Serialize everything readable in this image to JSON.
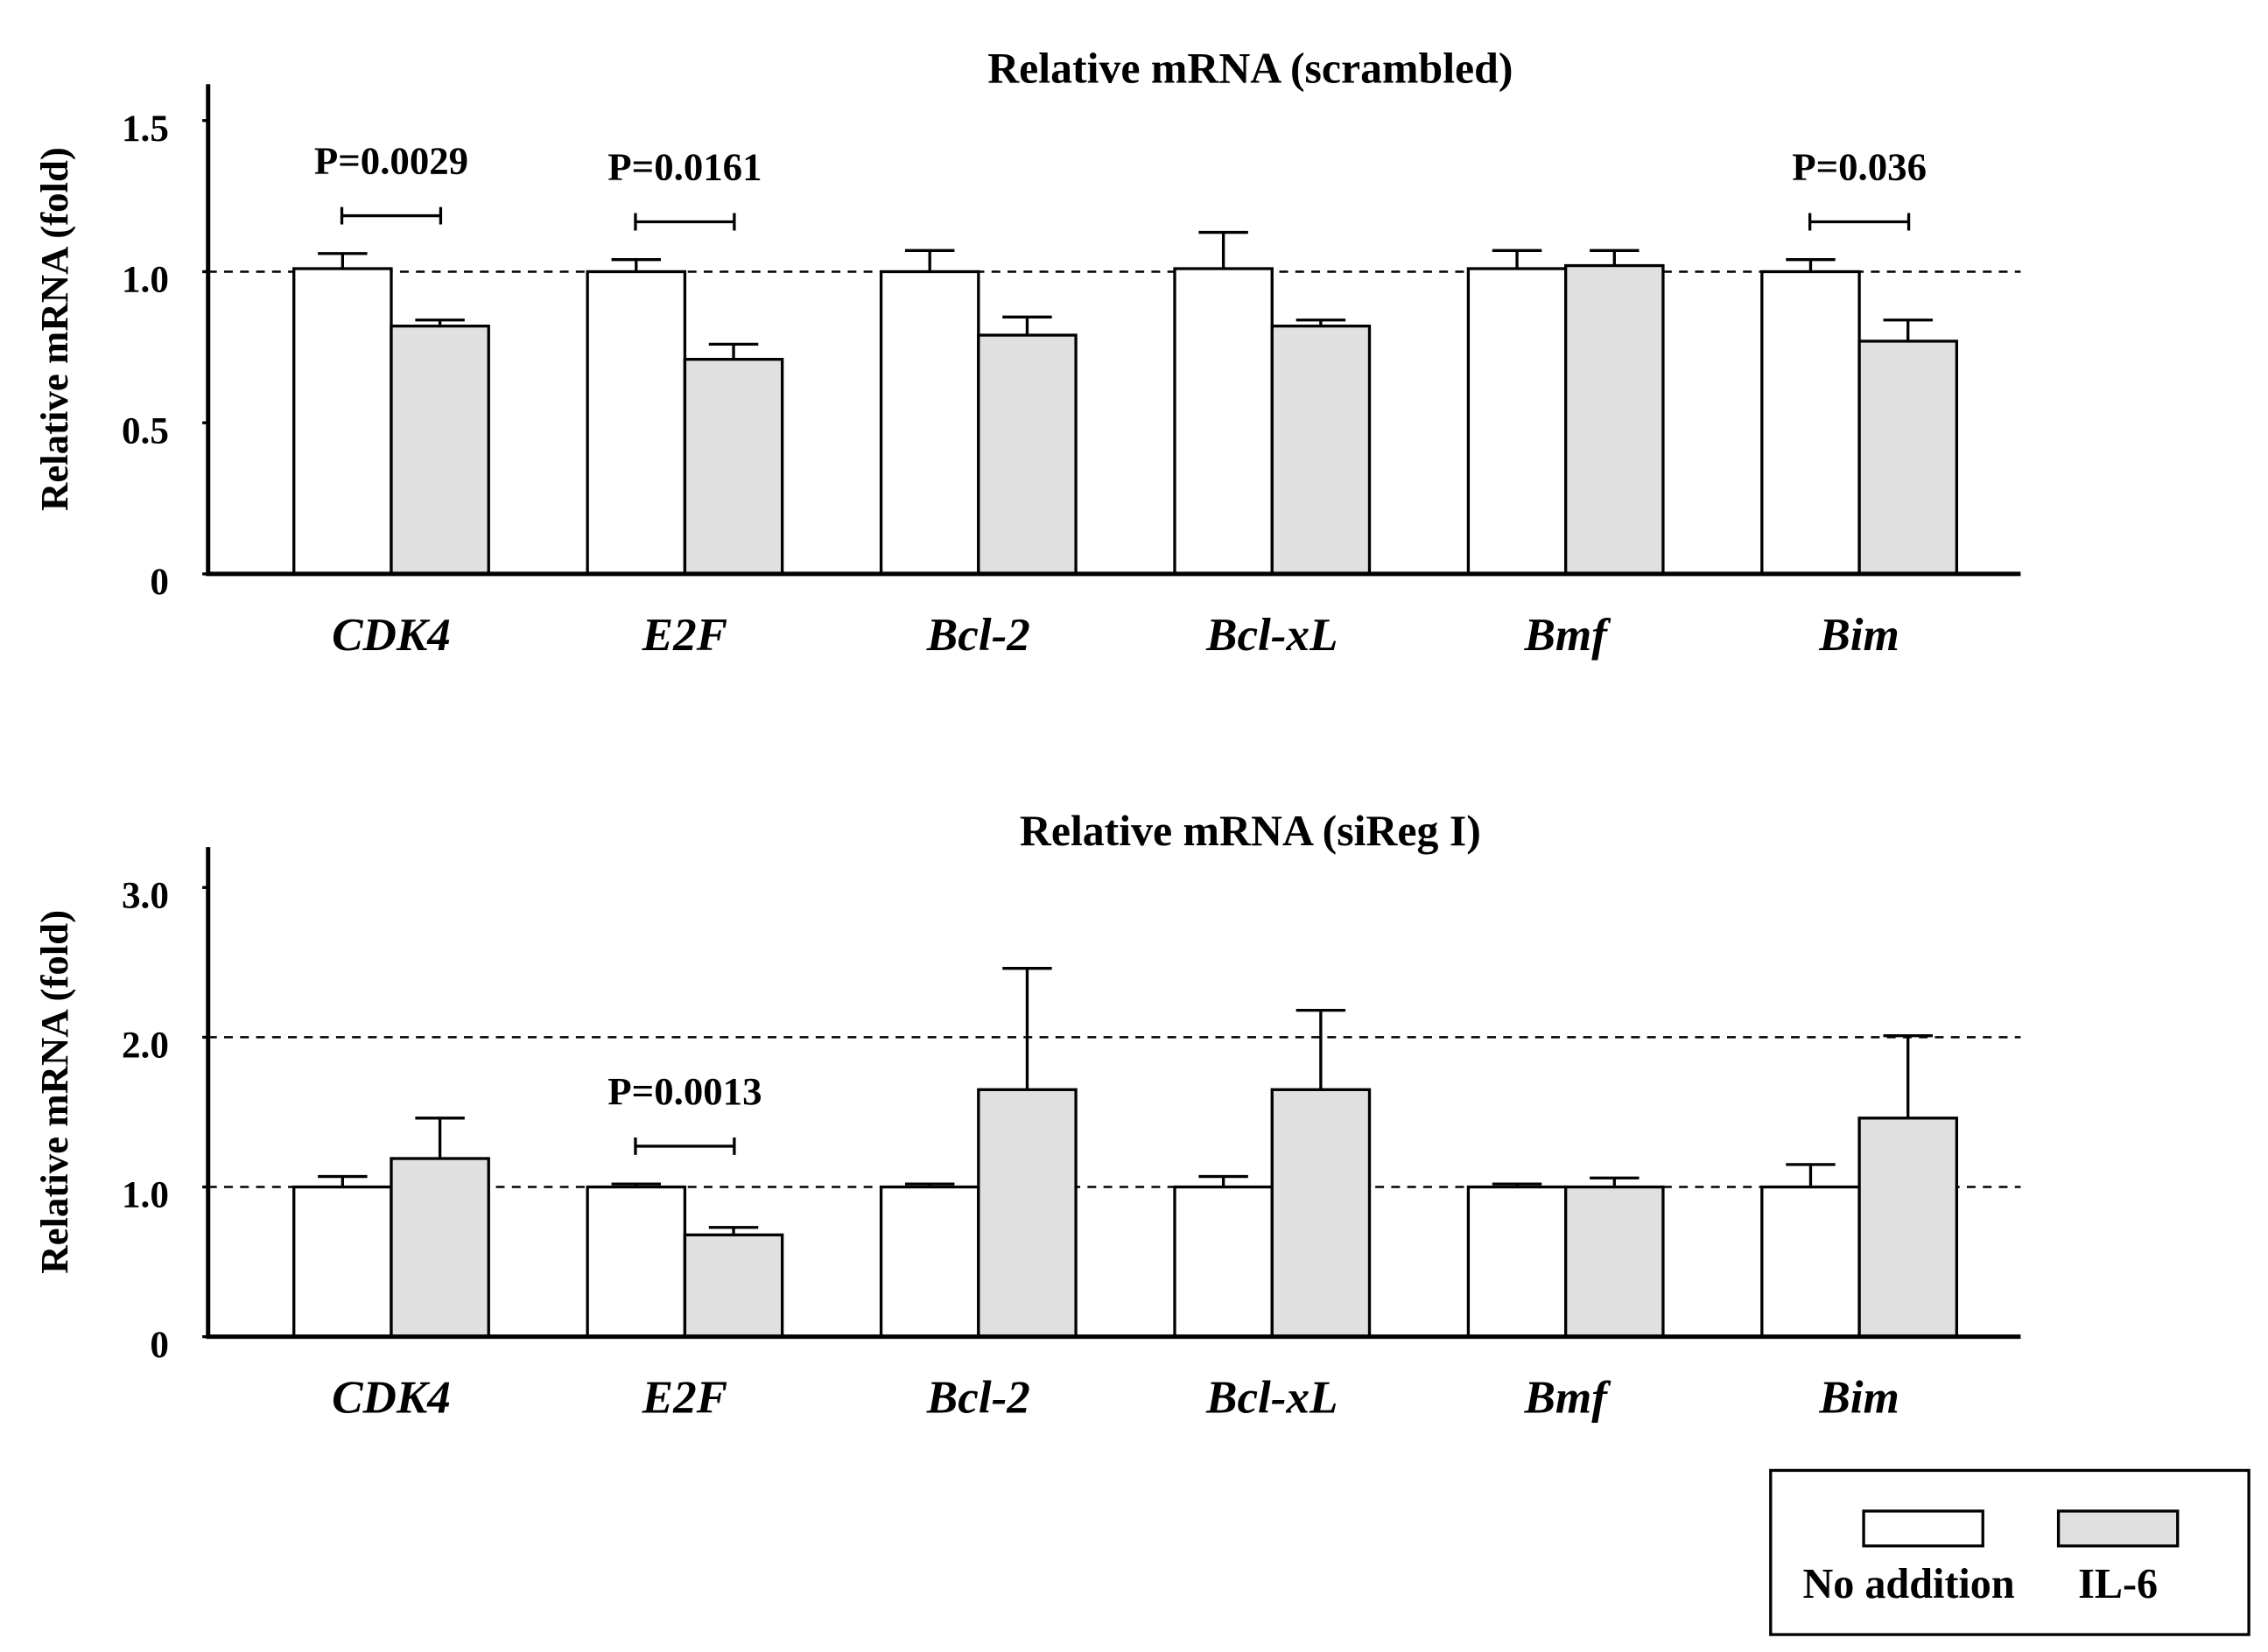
{
  "chart_data": [
    {
      "type": "bar",
      "title": "Relative mRNA (scrambled)",
      "y_label": "Relative mRNA (fold)",
      "categories": [
        "CDK4",
        "E2F",
        "Bcl-2",
        "Bcl-xL",
        "Bmf",
        "Bim"
      ],
      "series": [
        {
          "name": "No addition",
          "color": "#ffffff",
          "values": [
            1.01,
            1.0,
            1.0,
            1.01,
            1.01,
            1.0
          ],
          "errors": [
            0.05,
            0.04,
            0.07,
            0.12,
            0.06,
            0.04
          ]
        },
        {
          "name": "IL-6",
          "color": "#e0e0e0",
          "values": [
            0.82,
            0.71,
            0.79,
            0.82,
            1.02,
            0.77
          ],
          "errors": [
            0.02,
            0.05,
            0.06,
            0.02,
            0.05,
            0.07
          ]
        }
      ],
      "ylim": [
        0,
        1.62
      ],
      "yticks": [
        0,
        0.5,
        {
          "value": 1,
          "label": "1.0"
        },
        1.5
      ],
      "reference_lines": [
        1
      ],
      "annotations": [
        {
          "text": "P=0.0029",
          "category": "CDK4"
        },
        {
          "text": "P=0.0161",
          "category": "E2F"
        },
        {
          "text": "P=0.036",
          "category": "Bim"
        }
      ]
    },
    {
      "type": "bar",
      "title": "Relative mRNA (siReg I)",
      "y_label": "Relative mRNA (fold)",
      "categories": [
        "CDK4",
        "E2F",
        "Bcl-2",
        "Bcl-xL",
        "Bmf",
        "Bim"
      ],
      "series": [
        {
          "name": "No addition",
          "color": "#ffffff",
          "values": [
            1.0,
            1.0,
            1.0,
            1.0,
            1.0,
            1.0
          ],
          "errors": [
            0.07,
            0.02,
            0.02,
            0.07,
            0.02,
            0.15
          ]
        },
        {
          "name": "IL-6",
          "color": "#e0e0e0",
          "values": [
            1.19,
            0.68,
            1.65,
            1.65,
            1.0,
            1.46
          ],
          "errors": [
            0.27,
            0.05,
            0.81,
            0.53,
            0.06,
            0.55
          ]
        }
      ],
      "ylim": [
        0,
        3.27
      ],
      "yticks": [
        0,
        {
          "value": 1,
          "label": "1.0"
        },
        {
          "value": 2,
          "label": "2.0"
        },
        {
          "value": 3,
          "label": "3.0"
        }
      ],
      "reference_lines": [
        1,
        2
      ],
      "annotations": [
        {
          "text": "P=0.0013",
          "category": "E2F"
        }
      ]
    }
  ]
}
